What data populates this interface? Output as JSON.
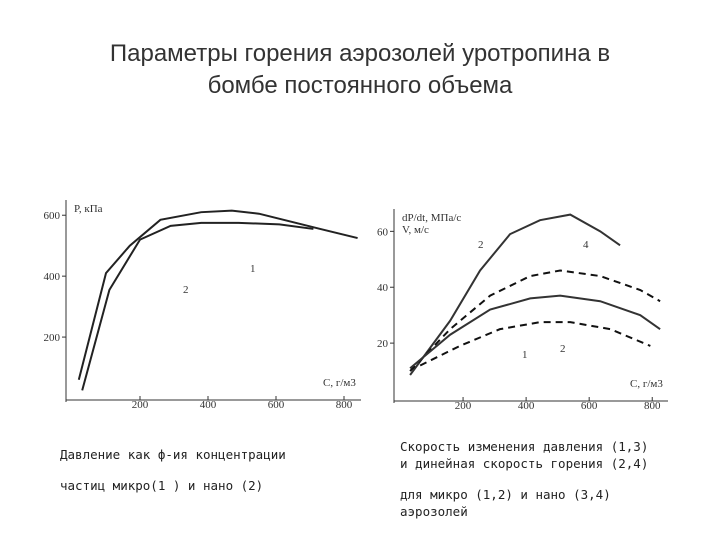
{
  "slide": {
    "title": [
      "Параметры горения аэрозолей уротропина в",
      "бомбе постоянного объема"
    ],
    "captions": [
      [
        "Давление как ф-ия концентрации",
        "частиц микро(1 ) и нано (2)"
      ],
      [
        "Скорость изменения давления (1,3)",
        "и динейная скорость горения (2,4)",
        "для микро (1,2) и нано (3,4)",
        "аэрозолей"
      ]
    ]
  },
  "chart_data": [
    {
      "type": "line",
      "ylabel": "P, кПа",
      "xlabel": "C, г/м3",
      "xlim": [
        0,
        850
      ],
      "ylim": [
        0,
        650
      ],
      "xticks": [
        200,
        400,
        600,
        800
      ],
      "yticks": [
        200,
        400,
        600
      ],
      "series": [
        {
          "name": "1",
          "color": "#222",
          "dash": false,
          "x": [
            20,
            100,
            170,
            260,
            380,
            470,
            550,
            640,
            730,
            840
          ],
          "values": [
            60,
            410,
            500,
            585,
            610,
            615,
            605,
            580,
            555,
            525
          ]
        },
        {
          "name": "2",
          "color": "#222",
          "dash": false,
          "x": [
            30,
            110,
            200,
            290,
            380,
            490,
            610,
            710
          ],
          "values": [
            25,
            355,
            520,
            565,
            575,
            575,
            570,
            555
          ]
        }
      ]
    },
    {
      "type": "line",
      "ylabel": "dP/dt, МПа/с",
      "ylabel2": "V, м/с",
      "xlabel": "C, г/м3",
      "xlim": [
        0,
        850
      ],
      "ylim": [
        0,
        68
      ],
      "xticks": [
        200,
        400,
        600,
        800
      ],
      "yticks": [
        20,
        40,
        60
      ],
      "series": [
        {
          "name": "2",
          "color": "#333",
          "dash": false,
          "x": [
            32,
            159,
            254,
            349,
            444,
            540,
            635,
            698
          ],
          "values": [
            8.6,
            28,
            46,
            59,
            64,
            66,
            60,
            55
          ]
        },
        {
          "name": "4",
          "color": "#111",
          "dash": true,
          "x": [
            32,
            159,
            286,
            413,
            508,
            635,
            762,
            825
          ],
          "values": [
            10,
            25,
            37,
            44,
            46,
            44,
            39,
            35
          ]
        },
        {
          "name": "1",
          "color": "#333",
          "dash": false,
          "x": [
            32,
            159,
            286,
            413,
            508,
            635,
            762,
            825
          ],
          "values": [
            11,
            23,
            32,
            36,
            37,
            35,
            30,
            25
          ]
        },
        {
          "name": "2",
          "color": "#111",
          "dash": true,
          "x": [
            64,
            190,
            317,
            444,
            540,
            667,
            794
          ],
          "values": [
            12,
            19,
            25,
            27.5,
            27.5,
            25,
            19
          ]
        }
      ]
    }
  ]
}
